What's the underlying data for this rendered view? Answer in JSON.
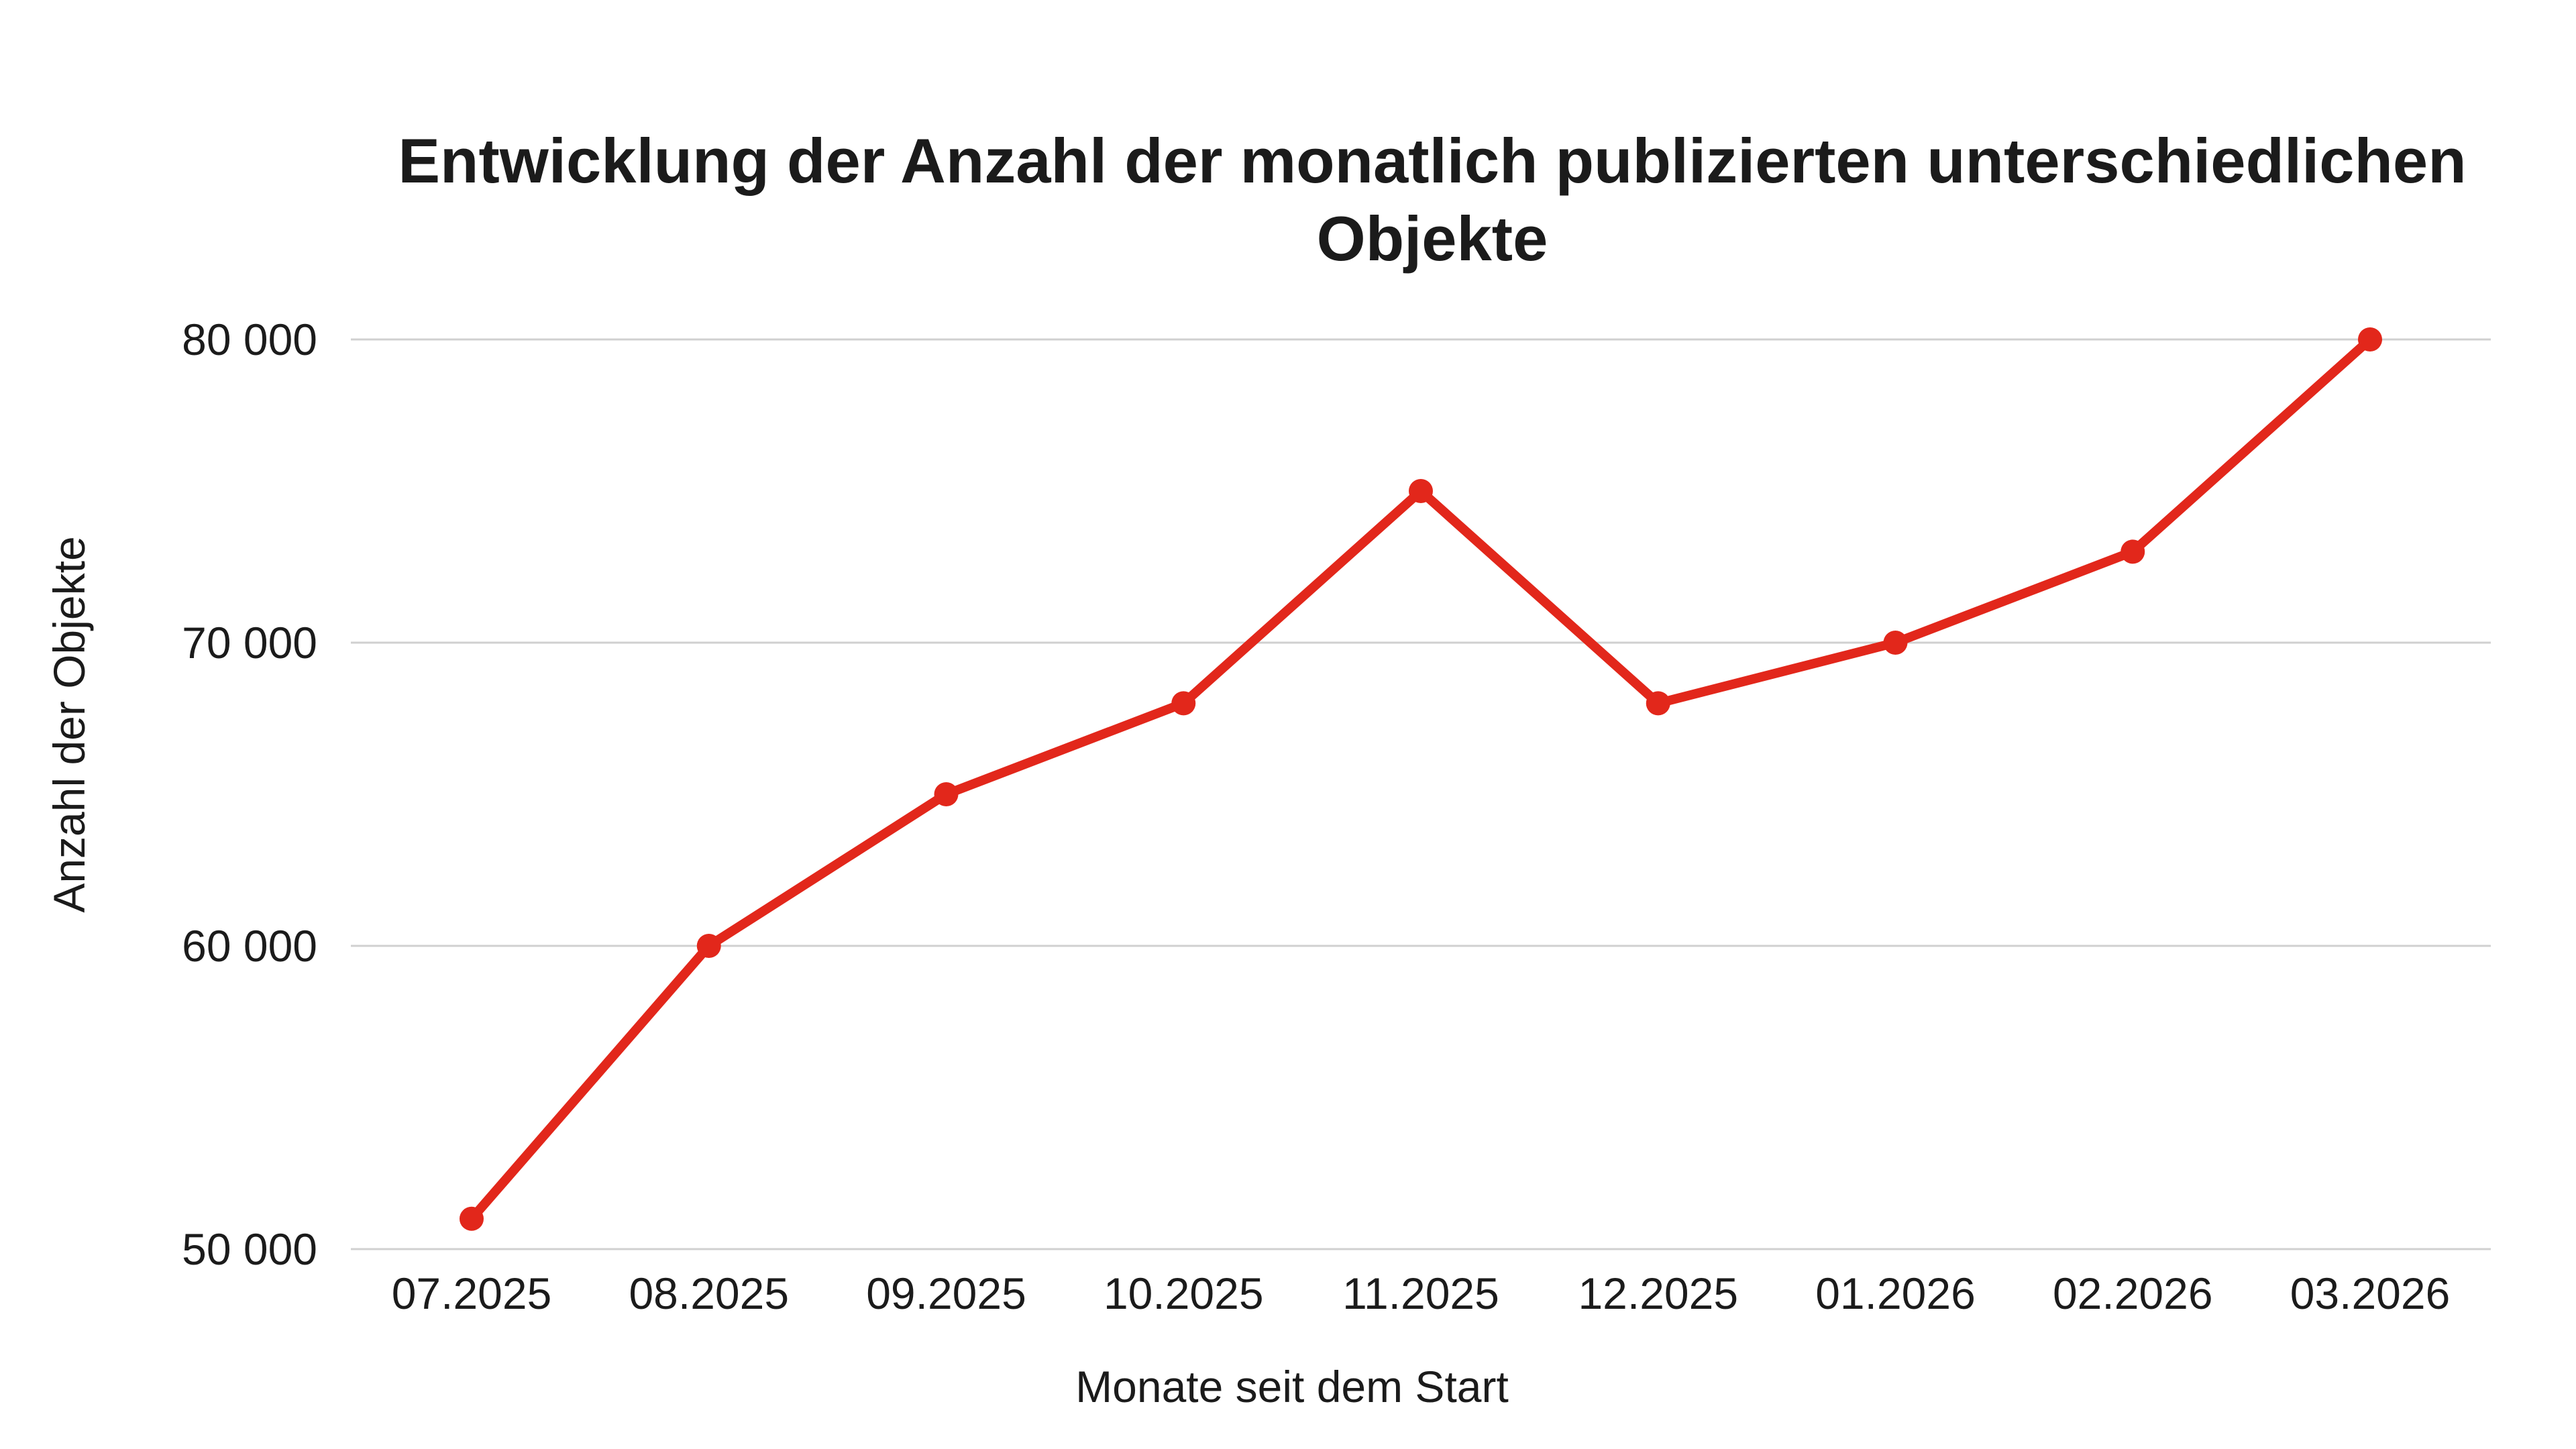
{
  "page": {
    "background": "#ffffff"
  },
  "chart_data": {
    "type": "line",
    "title": "Entwicklung der Anzahl der monatlich publizierten unterschiedlichen Objekte",
    "xlabel": "Monate seit dem Start",
    "ylabel": "Anzahl der Objekte",
    "categories": [
      "07.2025",
      "08.2025",
      "09.2025",
      "10.2025",
      "11.2025",
      "12.2025",
      "01.2026",
      "02.2026",
      "03.2026"
    ],
    "series": [
      {
        "name": "Anzahl der Objekte",
        "values": [
          51000,
          60000,
          65000,
          68000,
          75000,
          68000,
          70000,
          73000,
          80000
        ]
      }
    ],
    "ylim": [
      50000,
      80000
    ],
    "yticks": [
      50000,
      60000,
      70000,
      80000
    ],
    "ytick_labels": [
      "50 000",
      "60 000",
      "70 000",
      "80 000"
    ],
    "grid": "horizontal",
    "legend": "none",
    "marker": "circle",
    "colors": {
      "line": "#e2271b",
      "point": "#e2271b",
      "grid": "#d0d0d0",
      "text": "#1b1b1b",
      "background": "#ffffff"
    }
  }
}
